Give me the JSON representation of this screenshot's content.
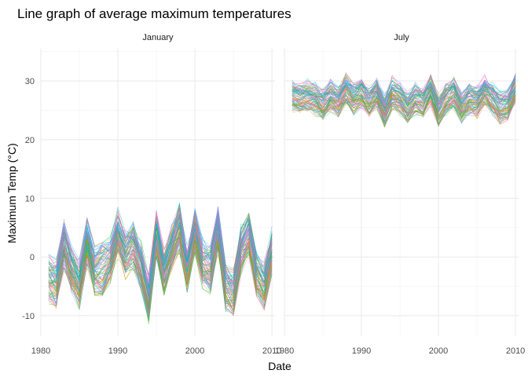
{
  "chart_data": {
    "type": "line",
    "title": "Line graph of average maximum temperatures",
    "xlabel": "Date",
    "ylabel": "Maximum Temp (°C)",
    "ylim": [
      -13.5,
      35.5
    ],
    "yticks": [
      -10,
      0,
      10,
      20,
      30
    ],
    "x_ticks": [
      1980,
      1990,
      2000,
      2010
    ],
    "grid": true,
    "legend": "none",
    "series_note": "",
    "colors": [
      "#F8766D",
      "#E58700",
      "#C99800",
      "#A3A500",
      "#6BB100",
      "#00BA38",
      "#00BF7D",
      "#00C0AF",
      "#00BCD8",
      "#00B0F6",
      "#619CFF",
      "#B983FF",
      "#E76BF3",
      "#FD61D1",
      "#FF67A4"
    ],
    "panels": [
      {
        "strip": "January",
        "xlim": [
          1980,
          2010.4
        ],
        "years": [
          1981,
          1982,
          1983,
          1984,
          1985,
          1986,
          1987,
          1988,
          1989,
          1990,
          1991,
          1992,
          1993,
          1994,
          1995,
          1996,
          1997,
          1998,
          1999,
          2000,
          2001,
          2002,
          2003,
          2004,
          2005,
          2006,
          2007,
          2008,
          2009,
          2010
        ],
        "mean": [
          -3.5,
          -4.5,
          2.0,
          -2.0,
          -4.5,
          2.5,
          -2.5,
          -2.0,
          -0.5,
          4.0,
          0.5,
          2.0,
          -1.5,
          -7.0,
          4.0,
          -2.5,
          1.5,
          5.0,
          -2.0,
          4.5,
          -1.0,
          -2.0,
          5.0,
          -5.0,
          -6.0,
          1.5,
          4.0,
          -3.0,
          -5.0,
          1.0
        ],
        "spread": 3.0
      },
      {
        "strip": "July",
        "xlim": [
          1980,
          2010.4
        ],
        "years": [
          1981,
          1982,
          1983,
          1984,
          1985,
          1986,
          1987,
          1988,
          1989,
          1990,
          1991,
          1992,
          1993,
          1994,
          1995,
          1996,
          1997,
          1998,
          1999,
          2000,
          2001,
          2002,
          2003,
          2004,
          2005,
          2006,
          2007,
          2008,
          2009,
          2010
        ],
        "mean": [
          27.5,
          27.0,
          27.5,
          27.0,
          26.0,
          27.5,
          26.5,
          28.5,
          27.0,
          28.0,
          26.5,
          28.0,
          25.0,
          28.0,
          27.0,
          25.5,
          27.0,
          26.5,
          28.5,
          25.0,
          27.0,
          28.0,
          25.5,
          27.0,
          26.5,
          28.5,
          27.0,
          25.5,
          26.0,
          29.0
        ],
        "spread": 2.0
      }
    ]
  }
}
